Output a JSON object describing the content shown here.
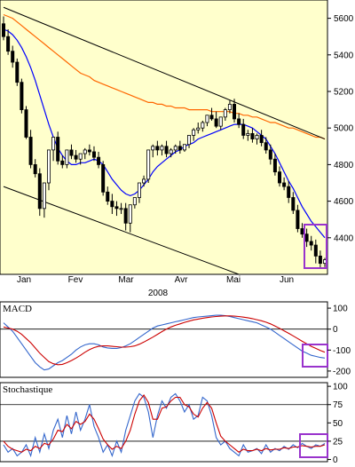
{
  "chart_data": [
    {
      "type": "candlestick",
      "title": "",
      "ylim": [
        4200,
        5700
      ],
      "y_ticks": [
        4400,
        4600,
        4800,
        5000,
        5200,
        5400,
        5600
      ],
      "x_tick_labels": [
        "Jan",
        "Fev",
        "Mar",
        "Avr",
        "Mai",
        "Jun"
      ],
      "year_label": "2008",
      "colors": {
        "background": "#ffffcc",
        "up_candle": "#ffffff",
        "down_candle": "#000000",
        "ma_short": "#0000ff",
        "ma_long": "#ff6600",
        "channel": "#000000",
        "highlight": "#9933cc"
      },
      "ohlc": {
        "open": [
          5570,
          5500,
          5420,
          5360,
          5250,
          5100,
          4950,
          4800,
          4750,
          4560,
          4700,
          4880,
          4950,
          4820,
          4800,
          4880,
          4850,
          4830,
          4860,
          4880,
          4870,
          4840,
          4800,
          4650,
          4600,
          4570,
          4560,
          4560,
          4480,
          4580,
          4620,
          4700,
          4720,
          4880,
          4900,
          4880,
          4900,
          4860,
          4880,
          4900,
          4880,
          4910,
          4960,
          4990,
          5000,
          5030,
          5070,
          5050,
          5010,
          5060,
          5100,
          5130,
          5050,
          5020,
          4960,
          4970,
          4940,
          4960,
          4920,
          4880,
          4830,
          4760,
          4700,
          4680,
          4620,
          4550,
          4450,
          4420,
          4380,
          4360,
          4300,
          4260
        ],
        "high": [
          5610,
          5540,
          5450,
          5380,
          5270,
          5120,
          4990,
          4830,
          4780,
          4620,
          4730,
          4910,
          4980,
          4850,
          4840,
          4910,
          4880,
          4860,
          4890,
          4910,
          4900,
          4870,
          4820,
          4680,
          4640,
          4600,
          4590,
          4590,
          4520,
          4610,
          4660,
          4740,
          4760,
          4910,
          4930,
          4910,
          4930,
          4890,
          4910,
          4930,
          4910,
          4940,
          5000,
          5030,
          5040,
          5070,
          5110,
          5090,
          5050,
          5110,
          5150,
          5160,
          5080,
          5050,
          4990,
          5000,
          4970,
          4990,
          4950,
          4910,
          4860,
          4790,
          4730,
          4710,
          4650,
          4580,
          4480,
          4450,
          4410,
          4390,
          4330,
          4290
        ],
        "low": [
          5480,
          5400,
          5330,
          5230,
          5080,
          4940,
          4780,
          4730,
          4520,
          4510,
          4660,
          4820,
          4800,
          4780,
          4780,
          4830,
          4810,
          4800,
          4830,
          4850,
          4820,
          4780,
          4630,
          4580,
          4530,
          4520,
          4530,
          4440,
          4430,
          4560,
          4590,
          4680,
          4700,
          4840,
          4850,
          4850,
          4840,
          4840,
          4860,
          4860,
          4870,
          4890,
          4930,
          4970,
          4980,
          5010,
          5040,
          5000,
          4990,
          5040,
          5080,
          5030,
          5000,
          4940,
          4930,
          4920,
          4910,
          4900,
          4860,
          4800,
          4740,
          4680,
          4660,
          4590,
          4530,
          4430,
          4400,
          4350,
          4330,
          4260,
          4230,
          4240
        ],
        "close": [
          5500,
          5420,
          5360,
          5250,
          5100,
          4950,
          4800,
          4750,
          4560,
          4700,
          4880,
          4950,
          4820,
          4800,
          4880,
          4850,
          4830,
          4860,
          4880,
          4870,
          4840,
          4800,
          4650,
          4600,
          4570,
          4560,
          4560,
          4480,
          4580,
          4620,
          4700,
          4720,
          4880,
          4900,
          4880,
          4900,
          4860,
          4880,
          4900,
          4880,
          4910,
          4960,
          4990,
          5000,
          5030,
          5070,
          5050,
          5010,
          5060,
          5100,
          5130,
          5050,
          5020,
          4960,
          4970,
          4940,
          4960,
          4920,
          4880,
          4830,
          4760,
          4700,
          4680,
          4620,
          4550,
          4450,
          4420,
          4380,
          4360,
          4300,
          4260,
          4280
        ]
      },
      "ma_short": [
        5540,
        5530,
        5510,
        5480,
        5440,
        5390,
        5330,
        5260,
        5180,
        5100,
        5020,
        4950,
        4890,
        4850,
        4820,
        4800,
        4800,
        4810,
        4810,
        4820,
        4830,
        4820,
        4800,
        4760,
        4720,
        4690,
        4660,
        4640,
        4630,
        4640,
        4660,
        4690,
        4720,
        4760,
        4790,
        4810,
        4830,
        4850,
        4870,
        4880,
        4900,
        4910,
        4920,
        4940,
        4950,
        4960,
        4970,
        4980,
        4990,
        5000,
        5010,
        5020,
        5020,
        5020,
        5010,
        5000,
        4980,
        4960,
        4940,
        4900,
        4860,
        4810,
        4760,
        4710,
        4670,
        4620,
        4570,
        4530,
        4490,
        4460,
        4430,
        4400
      ],
      "ma_long": [
        5620,
        5610,
        5600,
        5580,
        5560,
        5540,
        5520,
        5500,
        5480,
        5460,
        5440,
        5420,
        5400,
        5380,
        5360,
        5340,
        5320,
        5300,
        5290,
        5280,
        5260,
        5250,
        5240,
        5230,
        5220,
        5210,
        5200,
        5190,
        5180,
        5170,
        5160,
        5150,
        5140,
        5140,
        5130,
        5130,
        5120,
        5120,
        5110,
        5110,
        5110,
        5100,
        5100,
        5100,
        5100,
        5100,
        5090,
        5090,
        5090,
        5090,
        5090,
        5080,
        5080,
        5070,
        5070,
        5060,
        5060,
        5050,
        5040,
        5030,
        5030,
        5020,
        5010,
        5000,
        5000,
        4990,
        4980,
        4970,
        4960,
        4950,
        4950,
        4940
      ],
      "channel_upper": [
        [
          0,
          5660
        ],
        [
          71,
          4940
        ]
      ],
      "channel_lower": [
        [
          0,
          4680
        ],
        [
          52,
          4200
        ]
      ]
    },
    {
      "type": "line",
      "title": "MACD",
      "ylim": [
        -230,
        130
      ],
      "y_ticks": [
        100,
        0,
        -100,
        -200
      ],
      "y_tick_labels": [
        "100",
        "0",
        "-100",
        "-200"
      ],
      "series": [
        {
          "color": "#3366cc",
          "values": [
            30,
            10,
            -10,
            -40,
            -70,
            -100,
            -130,
            -160,
            -180,
            -195,
            -190,
            -175,
            -160,
            -150,
            -135,
            -120,
            -100,
            -85,
            -75,
            -70,
            -70,
            -75,
            -85,
            -90,
            -92,
            -92,
            -88,
            -80,
            -70,
            -55,
            -40,
            -25,
            -10,
            5,
            15,
            20,
            25,
            30,
            35,
            40,
            45,
            50,
            55,
            58,
            60,
            62,
            64,
            66,
            66,
            64,
            60,
            55,
            50,
            45,
            40,
            35,
            30,
            20,
            10,
            0,
            -15,
            -30,
            -45,
            -60,
            -75,
            -90,
            -105,
            -115,
            -125,
            -130,
            -135,
            -138
          ]
        },
        {
          "color": "#cc0000",
          "values": [
            10,
            5,
            0,
            -10,
            -25,
            -45,
            -65,
            -90,
            -115,
            -135,
            -155,
            -165,
            -170,
            -168,
            -160,
            -150,
            -138,
            -125,
            -110,
            -98,
            -88,
            -82,
            -80,
            -80,
            -82,
            -84,
            -86,
            -86,
            -84,
            -80,
            -72,
            -62,
            -50,
            -38,
            -25,
            -12,
            0,
            10,
            18,
            25,
            32,
            38,
            44,
            48,
            52,
            55,
            58,
            60,
            62,
            63,
            63,
            62,
            60,
            57,
            54,
            50,
            45,
            40,
            33,
            25,
            15,
            4,
            -8,
            -20,
            -32,
            -45,
            -58,
            -70,
            -82,
            -92,
            -102,
            -110
          ]
        }
      ]
    },
    {
      "type": "line",
      "title": "Stochastique",
      "ylim": [
        -3,
        105
      ],
      "y_ticks": [
        100,
        75,
        50,
        25,
        0
      ],
      "y_tick_labels": [
        "100",
        "75",
        "50",
        "25",
        "0"
      ],
      "series": [
        {
          "color": "#3366cc",
          "values": [
            20,
            10,
            15,
            5,
            10,
            20,
            5,
            30,
            10,
            35,
            15,
            40,
            55,
            30,
            60,
            35,
            65,
            40,
            55,
            75,
            45,
            30,
            10,
            20,
            5,
            25,
            10,
            40,
            60,
            80,
            90,
            85,
            65,
            30,
            60,
            80,
            70,
            85,
            90,
            80,
            65,
            75,
            55,
            60,
            85,
            80,
            60,
            30,
            20,
            25,
            15,
            10,
            5,
            20,
            10,
            12,
            15,
            8,
            20,
            10,
            15,
            12,
            18,
            14,
            20,
            16,
            22,
            18,
            15,
            20,
            18,
            22
          ]
        },
        {
          "color": "#cc0000",
          "values": [
            25,
            18,
            14,
            12,
            10,
            14,
            12,
            18,
            15,
            22,
            20,
            28,
            40,
            38,
            48,
            42,
            52,
            48,
            52,
            62,
            55,
            42,
            28,
            20,
            14,
            18,
            15,
            25,
            40,
            62,
            80,
            88,
            78,
            55,
            55,
            70,
            72,
            80,
            85,
            85,
            75,
            72,
            62,
            58,
            70,
            78,
            70,
            50,
            32,
            25,
            20,
            15,
            10,
            14,
            12,
            12,
            14,
            12,
            15,
            13,
            14,
            14,
            16,
            15,
            17,
            17,
            19,
            18,
            17,
            18,
            18,
            20
          ]
        }
      ]
    }
  ]
}
